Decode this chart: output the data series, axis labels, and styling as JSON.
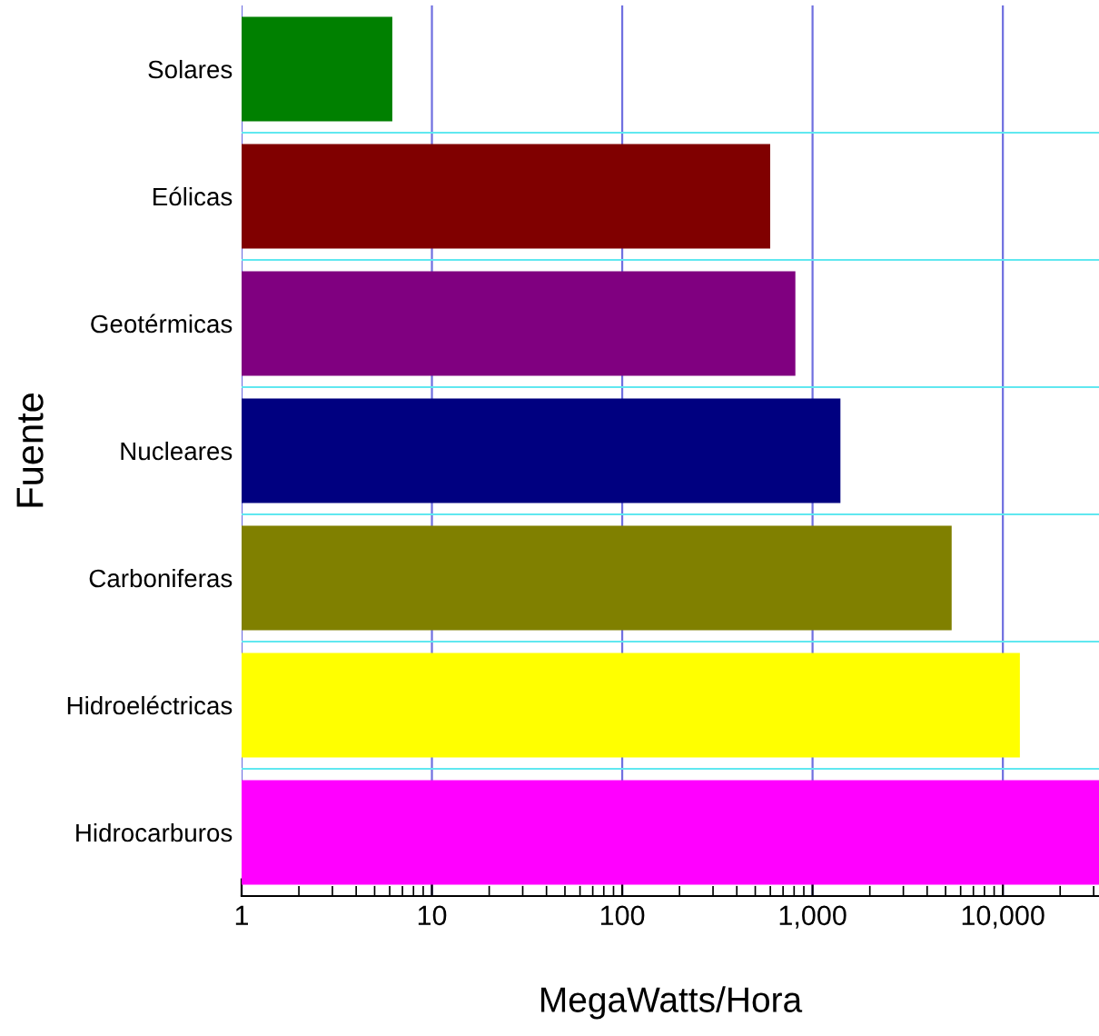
{
  "chart_data": {
    "type": "bar",
    "orientation": "horizontal",
    "xlabel": "MegaWatts/Hora",
    "ylabel": "Fuente",
    "categories": [
      "Solares",
      "Eólicas",
      "Geotérmicas",
      "Nucleares",
      "Carboniferas",
      "Hidroeléctricas",
      "Hidrocarburos"
    ],
    "values": [
      6.1,
      590,
      800,
      1380,
      5300,
      12100,
      32000
    ],
    "colors": [
      "#008000",
      "#800000",
      "#800080",
      "#000080",
      "#808000",
      "#ffff00",
      "#ff00ff"
    ],
    "log": "x",
    "xlim": [
      1,
      32000
    ],
    "xticks": [
      {
        "value": 1,
        "label": "1"
      },
      {
        "value": 10,
        "label": "10"
      },
      {
        "value": 100,
        "label": "100"
      },
      {
        "value": 1000,
        "label": "1,000"
      },
      {
        "value": 10000,
        "label": "10,000"
      }
    ],
    "grid": true,
    "legend": false
  }
}
